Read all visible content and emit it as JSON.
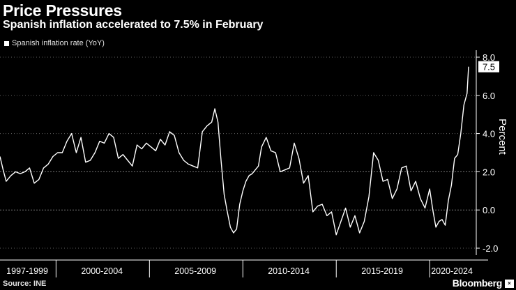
{
  "header": {
    "title": "Price Pressures",
    "subtitle": "Spanish inflation accelerated to 7.5% in February"
  },
  "footer": {
    "source": "Source: INE",
    "brand": "Bloomberg",
    "logo_text": "×"
  },
  "colors": {
    "background": "#000000",
    "line": "#ffffff",
    "grid": "#777777"
  },
  "chart_data": {
    "type": "line",
    "title": "",
    "ylabel": "Percent",
    "xlabel": "",
    "ylim": [
      -2.5,
      8.5
    ],
    "yticks": [
      -2,
      0,
      2,
      4,
      6,
      8
    ],
    "ytick_labels": [
      "-2.0",
      "0.0",
      "2.0",
      "4.0",
      "6.0",
      "8.0"
    ],
    "grid": true,
    "legend_position": "top-left",
    "x_range": [
      "1997-01",
      "2022-02"
    ],
    "x_groups": [
      {
        "label": "1997-1999",
        "start": "1997-01",
        "end": "1999-12"
      },
      {
        "label": "2000-2004",
        "start": "2000-01",
        "end": "2004-12"
      },
      {
        "label": "2005-2009",
        "start": "2005-01",
        "end": "2009-12"
      },
      {
        "label": "2010-2014",
        "start": "2010-01",
        "end": "2014-12"
      },
      {
        "label": "2015-2019",
        "start": "2015-01",
        "end": "2019-12"
      },
      {
        "label": "2020-2024",
        "start": "2020-01",
        "end": "2024-12"
      }
    ],
    "last_value_label": "7.5",
    "series": [
      {
        "name": "Spanish inflation rate (YoY)",
        "x": [
          "1997-01",
          "1997-03",
          "1997-05",
          "1997-08",
          "1997-11",
          "1998-02",
          "1998-05",
          "1998-08",
          "1998-11",
          "1999-02",
          "1999-05",
          "1999-08",
          "1999-11",
          "2000-02",
          "2000-05",
          "2000-08",
          "2000-11",
          "2001-02",
          "2001-05",
          "2001-08",
          "2001-11",
          "2002-02",
          "2002-05",
          "2002-08",
          "2002-11",
          "2003-02",
          "2003-05",
          "2003-08",
          "2003-11",
          "2004-02",
          "2004-05",
          "2004-08",
          "2004-11",
          "2005-02",
          "2005-05",
          "2005-08",
          "2005-11",
          "2006-02",
          "2006-05",
          "2006-08",
          "2006-11",
          "2007-02",
          "2007-05",
          "2007-08",
          "2007-11",
          "2008-02",
          "2008-05",
          "2008-07",
          "2008-09",
          "2008-11",
          "2009-01",
          "2009-03",
          "2009-05",
          "2009-07",
          "2009-09",
          "2009-11",
          "2010-01",
          "2010-03",
          "2010-05",
          "2010-07",
          "2010-09",
          "2010-11",
          "2011-01",
          "2011-04",
          "2011-07",
          "2011-10",
          "2012-01",
          "2012-04",
          "2012-07",
          "2012-10",
          "2013-01",
          "2013-04",
          "2013-07",
          "2013-10",
          "2014-01",
          "2014-04",
          "2014-07",
          "2014-10",
          "2015-01",
          "2015-04",
          "2015-07",
          "2015-10",
          "2016-01",
          "2016-04",
          "2016-07",
          "2016-10",
          "2017-01",
          "2017-04",
          "2017-07",
          "2017-10",
          "2018-01",
          "2018-04",
          "2018-07",
          "2018-10",
          "2019-01",
          "2019-04",
          "2019-07",
          "2019-10",
          "2020-01",
          "2020-03",
          "2020-05",
          "2020-07",
          "2020-09",
          "2020-11",
          "2021-01",
          "2021-03",
          "2021-05",
          "2021-07",
          "2021-09",
          "2021-11",
          "2022-01",
          "2022-02"
        ],
        "values": [
          2.8,
          2.1,
          1.5,
          1.8,
          2.0,
          1.9,
          2.0,
          2.2,
          1.4,
          1.6,
          2.2,
          2.4,
          2.8,
          3.0,
          3.0,
          3.6,
          4.0,
          3.0,
          3.8,
          2.5,
          2.6,
          3.0,
          3.6,
          3.5,
          4.0,
          3.8,
          2.7,
          2.9,
          2.6,
          2.3,
          3.4,
          3.2,
          3.5,
          3.3,
          3.1,
          3.7,
          3.4,
          4.1,
          3.9,
          3.0,
          2.6,
          2.4,
          2.3,
          2.2,
          4.1,
          4.4,
          4.6,
          5.3,
          4.6,
          2.6,
          0.8,
          -0.1,
          -0.9,
          -1.2,
          -1.0,
          0.3,
          1.0,
          1.5,
          1.8,
          1.9,
          2.1,
          2.3,
          3.3,
          3.8,
          3.1,
          3.0,
          2.0,
          2.1,
          2.2,
          3.5,
          2.7,
          1.4,
          1.8,
          -0.1,
          0.2,
          0.3,
          -0.3,
          -0.1,
          -1.3,
          -0.6,
          0.1,
          -0.9,
          -0.3,
          -1.2,
          -0.6,
          0.7,
          3.0,
          2.6,
          1.5,
          1.6,
          0.6,
          1.1,
          2.2,
          2.3,
          1.0,
          1.5,
          0.6,
          0.1,
          1.1,
          0.0,
          -0.9,
          -0.6,
          -0.5,
          -0.8,
          0.5,
          1.3,
          2.7,
          2.9,
          4.0,
          5.5,
          6.1,
          7.5
        ]
      }
    ]
  }
}
